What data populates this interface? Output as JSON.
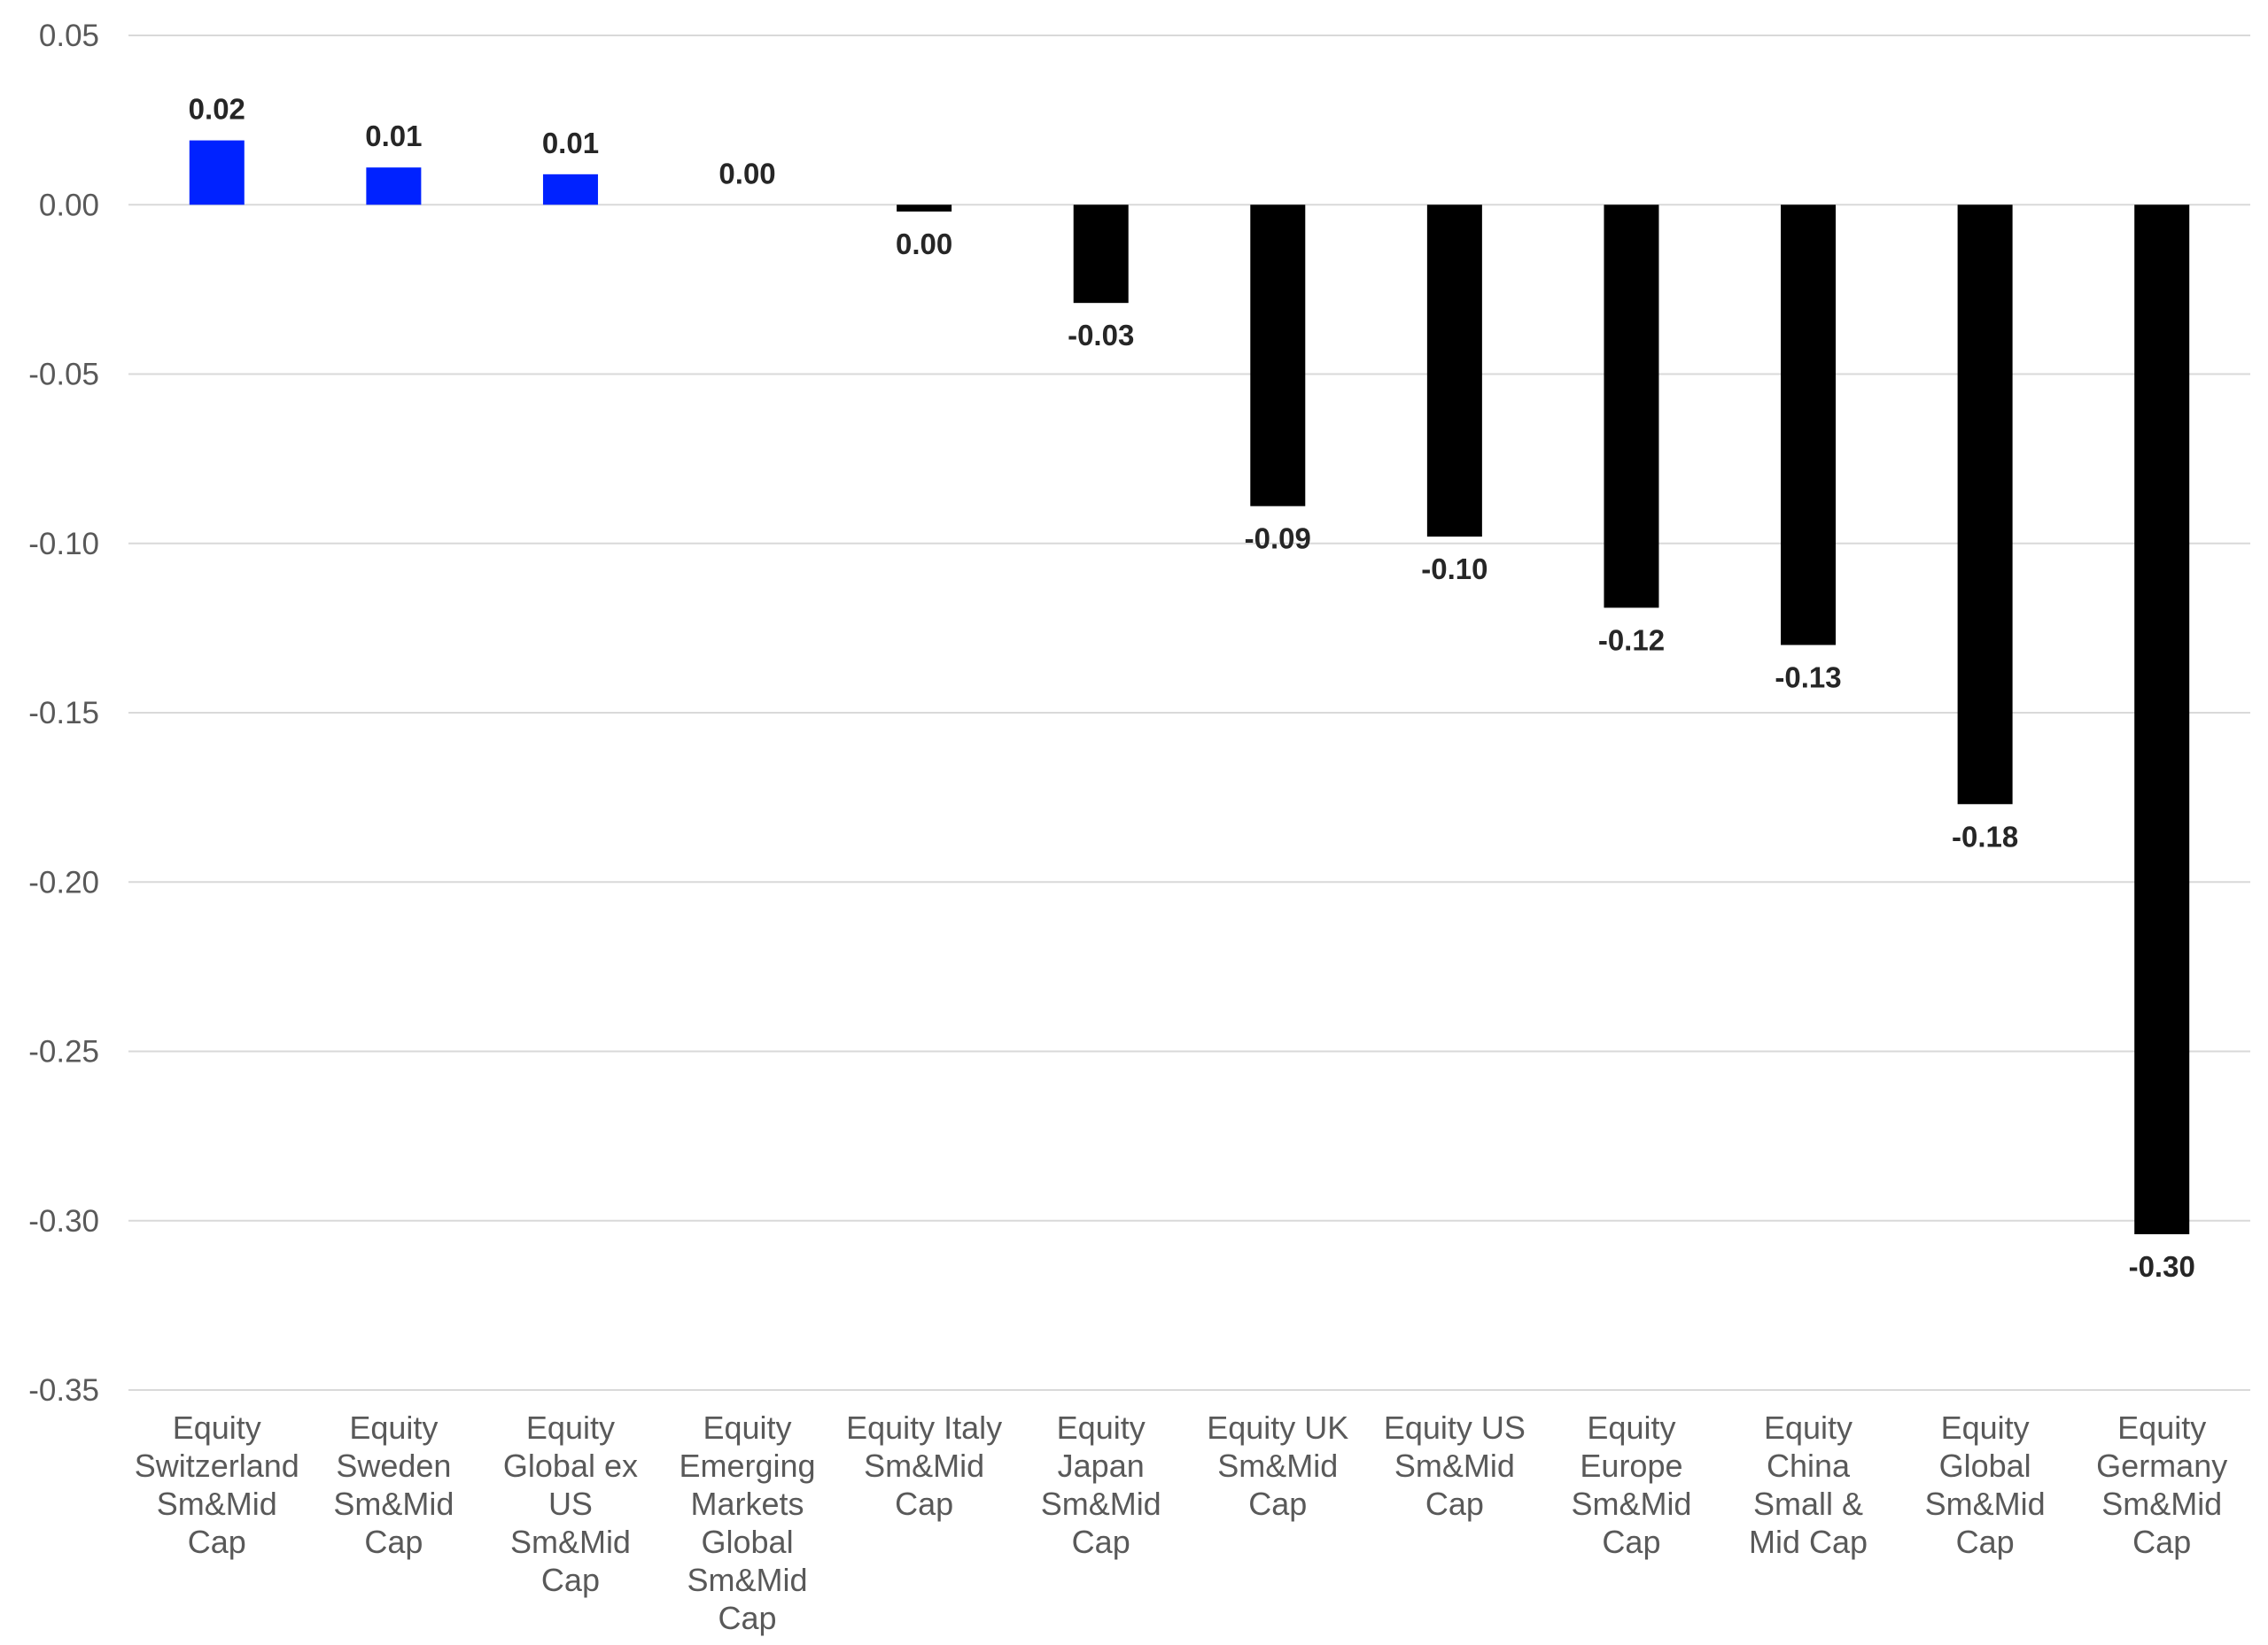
{
  "chart_data": {
    "type": "bar",
    "title": "",
    "xlabel": "",
    "ylabel": "",
    "ylim": [
      -0.35,
      0.05
    ],
    "yticks": [
      "0.05",
      "0.00",
      "-0.05",
      "-0.10",
      "-0.15",
      "-0.20",
      "-0.25",
      "-0.30",
      "-0.35"
    ],
    "ytick_values": [
      0.05,
      0.0,
      -0.05,
      -0.1,
      -0.15,
      -0.2,
      -0.25,
      -0.3,
      -0.35
    ],
    "grid": true,
    "categories": [
      [
        "Equity",
        "Switzerland",
        "Sm&Mid",
        "Cap"
      ],
      [
        "Equity",
        "Sweden",
        "Sm&Mid",
        "Cap"
      ],
      [
        "Equity",
        "Global ex",
        "US",
        "Sm&Mid",
        "Cap"
      ],
      [
        "Equity",
        "Emerging",
        "Markets",
        "Global",
        "Sm&Mid",
        "Cap"
      ],
      [
        "Equity Italy",
        "Sm&Mid",
        "Cap"
      ],
      [
        "Equity",
        "Japan",
        "Sm&Mid",
        "Cap"
      ],
      [
        "Equity UK",
        "Sm&Mid",
        "Cap"
      ],
      [
        "Equity US",
        "Sm&Mid",
        "Cap"
      ],
      [
        "Equity",
        "Europe",
        "Sm&Mid",
        "Cap"
      ],
      [
        "Equity",
        "China",
        "Small &",
        "Mid Cap"
      ],
      [
        "Equity",
        "Global",
        "Sm&Mid",
        "Cap"
      ],
      [
        "Equity",
        "Germany",
        "Sm&Mid",
        "Cap"
      ]
    ],
    "values": [
      0.019,
      0.011,
      0.009,
      0.0,
      -0.002,
      -0.029,
      -0.089,
      -0.098,
      -0.119,
      -0.13,
      -0.177,
      -0.304
    ],
    "data_labels": [
      "0.02",
      "0.01",
      "0.01",
      "0.00",
      "0.00",
      "-0.03",
      "-0.09",
      "-0.10",
      "-0.12",
      "-0.13",
      "-0.18",
      "-0.30"
    ],
    "colors": {
      "positive": "#0022ff",
      "negative": "#000000"
    }
  }
}
